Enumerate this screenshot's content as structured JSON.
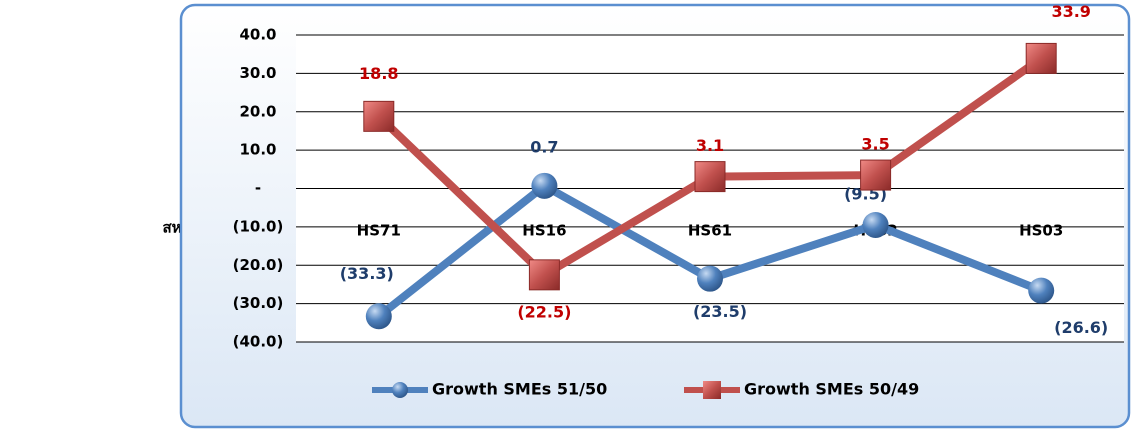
{
  "row_label": "สหรัฐอเมริกา",
  "chart_data": {
    "type": "line",
    "categories": [
      "HS71",
      "HS16",
      "HS61",
      "HS62",
      "HS03"
    ],
    "series": [
      {
        "name": "Growth SMEs 51/50",
        "color": "#4f81bd",
        "marker": "circle",
        "label_color": "#1f3d6b",
        "values": [
          -33.3,
          0.7,
          -23.5,
          -9.5,
          -26.6
        ],
        "value_labels": [
          "(33.3)",
          "0.7",
          "(23.5)",
          "(9.5)",
          "(26.6)"
        ]
      },
      {
        "name": "Growth SMEs 50/49",
        "color": "#c0504d",
        "marker": "square",
        "label_color": "#c00000",
        "values": [
          18.8,
          -22.5,
          3.1,
          3.5,
          33.9
        ],
        "value_labels": [
          "18.8",
          "(22.5)",
          "3.1",
          "3.5",
          "33.9"
        ]
      }
    ],
    "ylim": [
      -40,
      40
    ],
    "yticks": [
      {
        "value": 40,
        "label": "40.0"
      },
      {
        "value": 30,
        "label": "30.0"
      },
      {
        "value": 20,
        "label": "20.0"
      },
      {
        "value": 10,
        "label": "10.0"
      },
      {
        "value": 0,
        "label": "-"
      },
      {
        "value": -10,
        "label": "(10.0)"
      },
      {
        "value": -20,
        "label": "(20.0)"
      },
      {
        "value": -30,
        "label": "(30.0)"
      },
      {
        "value": -40,
        "label": "(40.0)"
      }
    ],
    "grid": true,
    "legend": "bottom"
  }
}
